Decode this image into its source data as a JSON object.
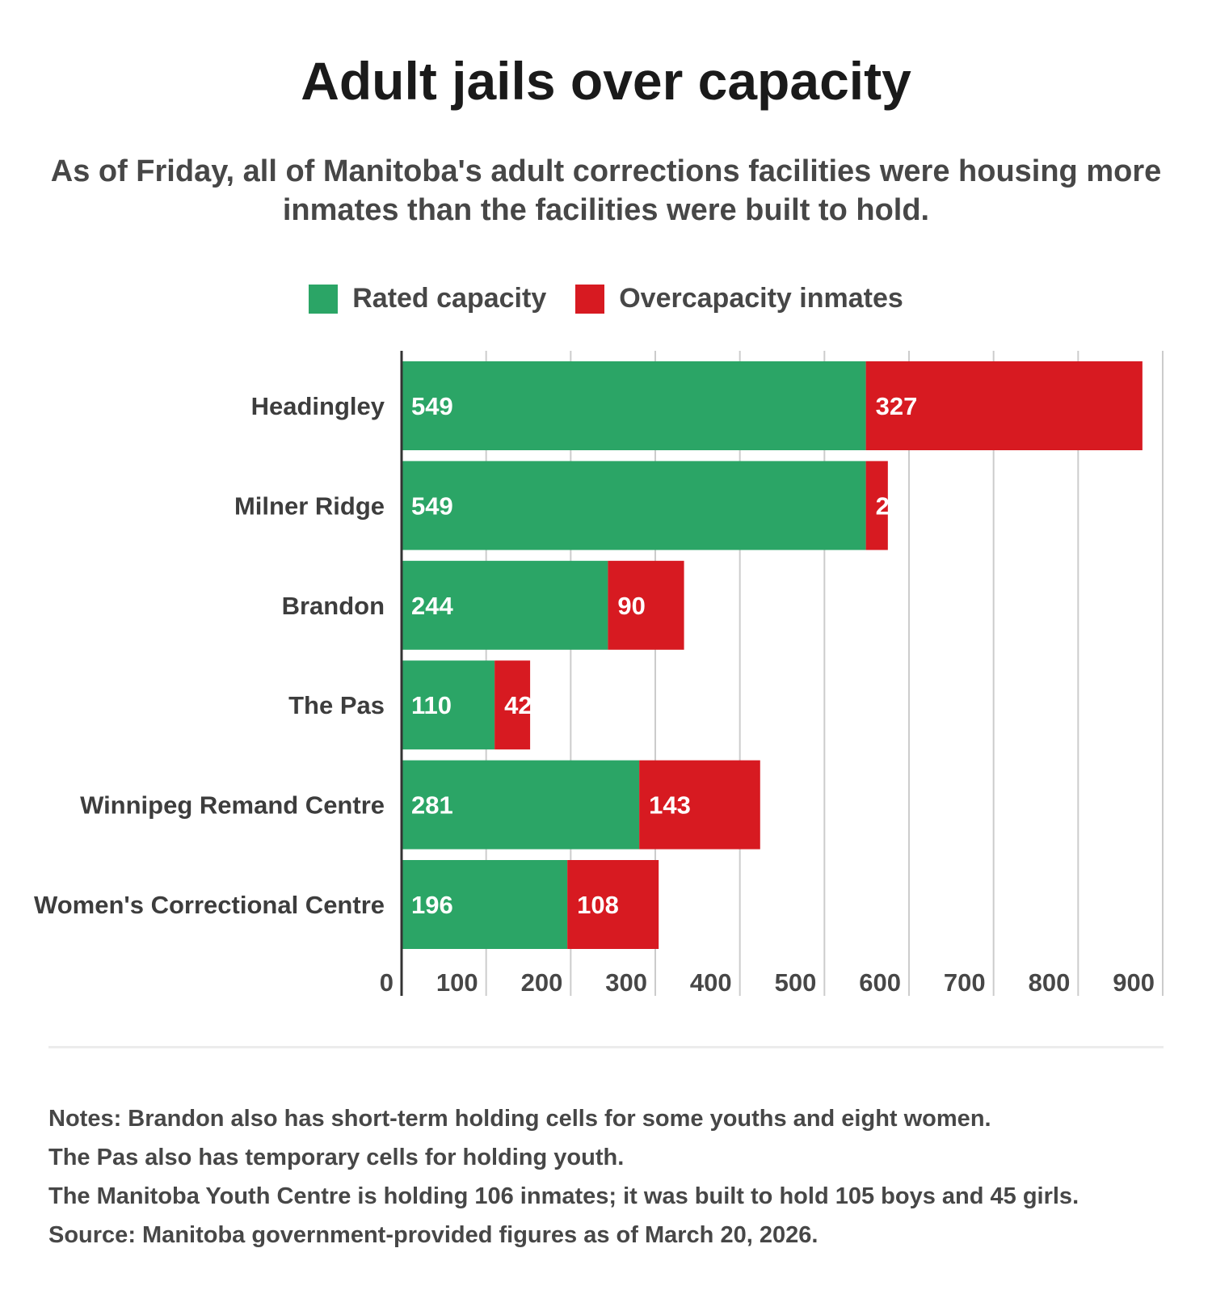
{
  "title": "Adult jails over capacity",
  "subtitle": "As of Friday, all of Manitoba's adult corrections facilities were housing more inmates than the facilities were built to hold.",
  "colors": {
    "rated": "#2ba566",
    "over": "#d71a21"
  },
  "chart_data": {
    "type": "bar",
    "orientation": "horizontal",
    "stacked": true,
    "categories": [
      "Headingley",
      "Milner Ridge",
      "Brandon",
      "The Pas",
      "Winnipeg Remand Centre",
      "Women's Correctional Centre"
    ],
    "series": [
      {
        "name": "Rated capacity",
        "values": [
          549,
          549,
          244,
          110,
          281,
          196
        ]
      },
      {
        "name": "Overcapacity inmates",
        "values": [
          327,
          26,
          90,
          42,
          143,
          108
        ]
      }
    ],
    "xlim": [
      0,
      900
    ],
    "ticks": [
      "0",
      "100",
      "200",
      "300",
      "400",
      "500",
      "600",
      "700",
      "800",
      "900"
    ],
    "grid": true,
    "legend": "top"
  },
  "notes": [
    "Notes: Brandon also has short-term holding cells for some youths and eight women.",
    "The Pas also has temporary cells for holding youth.",
    "The Manitoba Youth Centre is holding 106 inmates; it was built to hold 105 boys and 45 girls.",
    "Source: Manitoba government-provided figures as of March 20, 2026."
  ]
}
